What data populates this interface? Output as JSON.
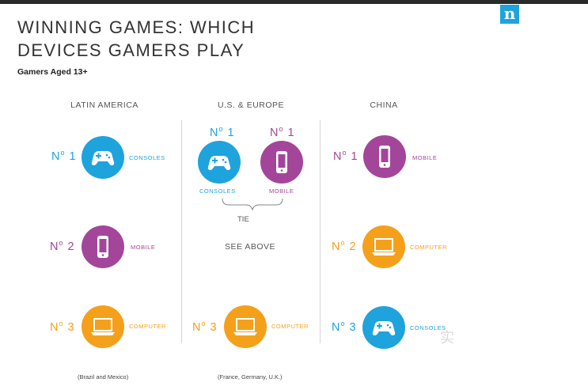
{
  "colors": {
    "consoles": "#1ea3dd",
    "mobile": "#a3469a",
    "computer": "#f5a01a"
  },
  "header": {
    "logo": "n",
    "title_line1": "WINNING GAMES: WHICH",
    "title_line2": "DEVICES GAMERS PLAY",
    "subtitle": "Gamers Aged 13+"
  },
  "columns": {
    "latin": {
      "name": "LATIN AMERICA",
      "footnote": "(Brazil and Mexico)",
      "r1": {
        "rank": "1",
        "device": "CONSOLES",
        "icon": "gamepad-icon"
      },
      "r2": {
        "rank": "2",
        "device": "MOBILE",
        "icon": "mobile-phone-icon"
      },
      "r3": {
        "rank": "3",
        "device": "COMPUTER",
        "icon": "laptop-icon"
      }
    },
    "us": {
      "name": "U.S. & EUROPE",
      "footnote": "(France, Germany, U.K.)",
      "r1a": {
        "rank": "1",
        "device": "CONSOLES",
        "icon": "gamepad-icon"
      },
      "r1b": {
        "rank": "1",
        "device": "MOBILE",
        "icon": "mobile-phone-icon"
      },
      "tie": "TIE",
      "r2_text": "SEE ABOVE",
      "r3": {
        "rank": "3",
        "device": "COMPUTER",
        "icon": "laptop-icon"
      }
    },
    "china": {
      "name": "CHINA",
      "r1": {
        "rank": "1",
        "device": "MOBILE",
        "icon": "mobile-phone-icon"
      },
      "r2": {
        "rank": "2",
        "device": "COMPUTER",
        "icon": "laptop-icon"
      },
      "r3": {
        "rank": "3",
        "device": "CONSOLES",
        "icon": "gamepad-icon"
      }
    }
  },
  "rank_prefix": "N",
  "watermark": "实"
}
